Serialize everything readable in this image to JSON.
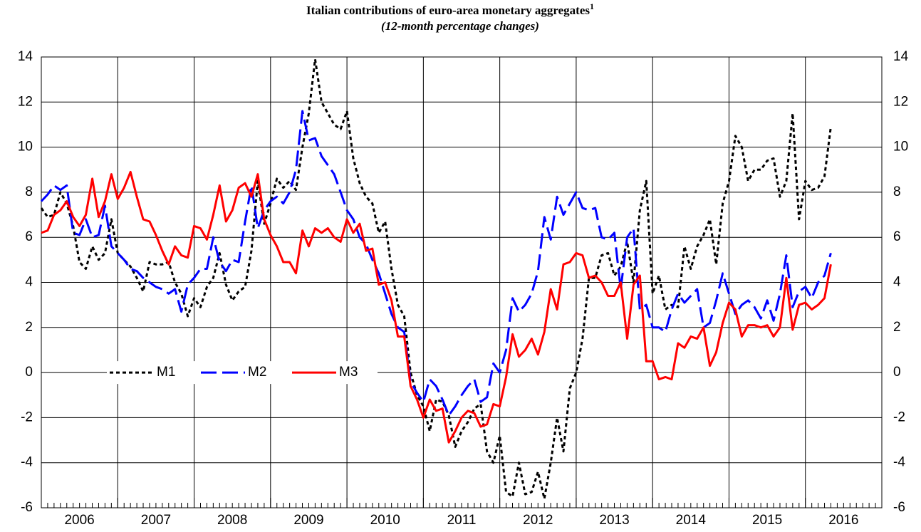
{
  "chart_data": {
    "type": "line",
    "title": "Italian contributions of euro-area monetary aggregates",
    "title_note": "1",
    "subtitle": "(12-month percentage changes)",
    "x": [
      2006,
      2006.083,
      2006.167,
      2006.25,
      2006.333,
      2006.417,
      2006.5,
      2006.583,
      2006.667,
      2006.75,
      2006.833,
      2006.917,
      2007,
      2007.083,
      2007.167,
      2007.25,
      2007.333,
      2007.417,
      2007.5,
      2007.583,
      2007.667,
      2007.75,
      2007.833,
      2007.917,
      2008,
      2008.083,
      2008.167,
      2008.25,
      2008.333,
      2008.417,
      2008.5,
      2008.583,
      2008.667,
      2008.75,
      2008.833,
      2008.917,
      2009,
      2009.083,
      2009.167,
      2009.25,
      2009.333,
      2009.417,
      2009.5,
      2009.583,
      2009.667,
      2009.75,
      2009.833,
      2009.917,
      2010,
      2010.083,
      2010.167,
      2010.25,
      2010.333,
      2010.417,
      2010.5,
      2010.583,
      2010.667,
      2010.75,
      2010.833,
      2010.917,
      2011,
      2011.083,
      2011.167,
      2011.25,
      2011.333,
      2011.417,
      2011.5,
      2011.583,
      2011.667,
      2011.75,
      2011.833,
      2011.917,
      2012,
      2012.083,
      2012.167,
      2012.25,
      2012.333,
      2012.417,
      2012.5,
      2012.583,
      2012.667,
      2012.75,
      2012.833,
      2012.917,
      2013,
      2013.083,
      2013.167,
      2013.25,
      2013.333,
      2013.417,
      2013.5,
      2013.583,
      2013.667,
      2013.75,
      2013.833,
      2013.917,
      2014,
      2014.083,
      2014.167,
      2014.25,
      2014.333,
      2014.417,
      2014.5,
      2014.583,
      2014.667,
      2014.75,
      2014.833,
      2014.917,
      2015,
      2015.083,
      2015.167,
      2015.25,
      2015.333,
      2015.417,
      2015.5,
      2015.583,
      2015.667,
      2015.75,
      2015.833,
      2015.917,
      2016,
      2016.083,
      2016.167,
      2016.25,
      2016.333
    ],
    "series": [
      {
        "name": "M1",
        "color": "#000000",
        "dash": "short",
        "values": [
          7.3,
          6.9,
          7.0,
          8.0,
          7.5,
          6.5,
          4.9,
          4.6,
          5.6,
          5.0,
          5.3,
          6.8,
          5.3,
          5.0,
          4.7,
          4.2,
          3.6,
          4.9,
          4.8,
          4.8,
          4.9,
          4.0,
          3.5,
          2.5,
          3.3,
          2.9,
          3.8,
          4.2,
          5.3,
          3.9,
          3.2,
          3.6,
          3.8,
          5.4,
          8.5,
          6.6,
          7.5,
          8.6,
          8.2,
          8.5,
          8.1,
          10.0,
          11.5,
          13.9,
          12.0,
          11.5,
          11.0,
          10.8,
          11.6,
          9.5,
          8.4,
          7.8,
          7.5,
          6.2,
          6.7,
          4.6,
          3.0,
          2.5,
          0.0,
          -1.0,
          -1.5,
          -2.6,
          -1.2,
          -1.3,
          -1.9,
          -3.3,
          -2.6,
          -2.2,
          -1.6,
          -1.4,
          -3.5,
          -4.0,
          -2.8,
          -5.3,
          -5.5,
          -4.0,
          -5.4,
          -5.3,
          -4.4,
          -5.6,
          -4.0,
          -2.0,
          -3.5,
          -0.7,
          0.0,
          1.5,
          4.2,
          4.2,
          5.2,
          5.3,
          4.3,
          4.7,
          5.8,
          4.0,
          7.2,
          8.5,
          3.5,
          4.3,
          2.8,
          3.0,
          2.9,
          5.6,
          4.6,
          5.6,
          6.1,
          6.8,
          4.8,
          7.5,
          8.5,
          10.5,
          10.0,
          8.5,
          9.0,
          9.0,
          9.4,
          9.5,
          7.8,
          8.5,
          11.5,
          6.8,
          8.5,
          8.1,
          8.2,
          8.7,
          10.9
        ]
      },
      {
        "name": "M2",
        "color": "#0000ff",
        "dash": "long",
        "values": [
          7.6,
          7.9,
          8.3,
          8.1,
          8.3,
          6.2,
          6.1,
          6.8,
          6.0,
          6.1,
          7.4,
          5.6,
          5.3,
          5.0,
          4.6,
          4.5,
          4.2,
          4.0,
          3.8,
          3.7,
          3.5,
          3.7,
          2.7,
          3.9,
          4.2,
          4.6,
          4.6,
          6.0,
          4.9,
          4.5,
          5.0,
          4.9,
          6.7,
          8.3,
          6.4,
          7.2,
          7.6,
          7.8,
          7.5,
          8.0,
          9.0,
          11.6,
          10.3,
          10.4,
          9.6,
          9.2,
          8.8,
          8.0,
          7.2,
          6.8,
          6.0,
          5.7,
          5.0,
          4.4,
          3.5,
          2.6,
          2.0,
          1.8,
          -0.4,
          -0.9,
          -1.3,
          -0.3,
          -0.6,
          -1.2,
          -1.9,
          -1.5,
          -1.0,
          -0.6,
          -0.3,
          -1.3,
          -1.1,
          0.4,
          0.0,
          1.0,
          3.3,
          2.7,
          3.0,
          3.5,
          4.5,
          6.9,
          5.9,
          7.8,
          7.0,
          7.5,
          8.0,
          7.3,
          7.2,
          7.3,
          6.0,
          5.9,
          6.2,
          3.7,
          6.0,
          6.4,
          2.8,
          3.0,
          2.0,
          2.0,
          1.8,
          2.8,
          3.5,
          3.1,
          3.4,
          3.7,
          2.0,
          2.2,
          3.2,
          4.4,
          3.5,
          2.6,
          3.0,
          3.2,
          2.9,
          2.4,
          3.2,
          2.3,
          3.5,
          5.2,
          2.9,
          3.6,
          3.8,
          3.3,
          4.0,
          4.3,
          5.3
        ]
      },
      {
        "name": "M3",
        "color": "#ff0000",
        "dash": "solid",
        "values": [
          6.2,
          6.3,
          7.0,
          7.2,
          7.6,
          6.9,
          6.5,
          7.0,
          8.6,
          6.9,
          7.6,
          8.8,
          7.7,
          8.2,
          8.9,
          7.8,
          6.8,
          6.7,
          6.1,
          5.4,
          4.8,
          5.6,
          5.2,
          5.1,
          6.5,
          6.4,
          5.9,
          7.0,
          8.3,
          6.7,
          7.2,
          8.2,
          8.4,
          7.8,
          8.8,
          6.8,
          6.1,
          5.6,
          4.9,
          4.9,
          4.4,
          6.3,
          5.6,
          6.4,
          6.2,
          6.4,
          6.0,
          5.8,
          6.8,
          6.2,
          6.6,
          5.4,
          5.5,
          3.9,
          4.0,
          3.2,
          1.6,
          1.6,
          -0.6,
          -1.2,
          -2.0,
          -1.2,
          -1.7,
          -1.6,
          -3.1,
          -2.6,
          -2.0,
          -1.7,
          -1.8,
          -2.4,
          -2.3,
          -1.4,
          -1.5,
          -0.2,
          1.7,
          0.7,
          1.0,
          1.5,
          0.8,
          1.8,
          3.7,
          2.8,
          4.8,
          4.9,
          5.3,
          5.2,
          4.2,
          4.3,
          4.0,
          3.4,
          3.4,
          4.0,
          1.5,
          3.9,
          4.3,
          0.5,
          0.5,
          -0.3,
          -0.2,
          -0.3,
          1.3,
          1.1,
          1.6,
          1.5,
          2.0,
          0.3,
          0.9,
          2.2,
          3.1,
          2.8,
          1.6,
          2.1,
          2.1,
          2.0,
          2.1,
          1.6,
          2.0,
          4.2,
          1.9,
          3.0,
          3.1,
          2.8,
          3.0,
          3.3,
          4.8
        ]
      }
    ],
    "xlim": [
      2006,
      2017
    ],
    "xticks": [
      2006,
      2007,
      2008,
      2009,
      2010,
      2011,
      2012,
      2013,
      2014,
      2015,
      2016
    ],
    "ylim": [
      -6,
      14
    ],
    "yticks": [
      -6,
      -4,
      -2,
      0,
      2,
      4,
      6,
      8,
      10,
      12,
      14
    ],
    "grid": true,
    "legend": "left"
  }
}
